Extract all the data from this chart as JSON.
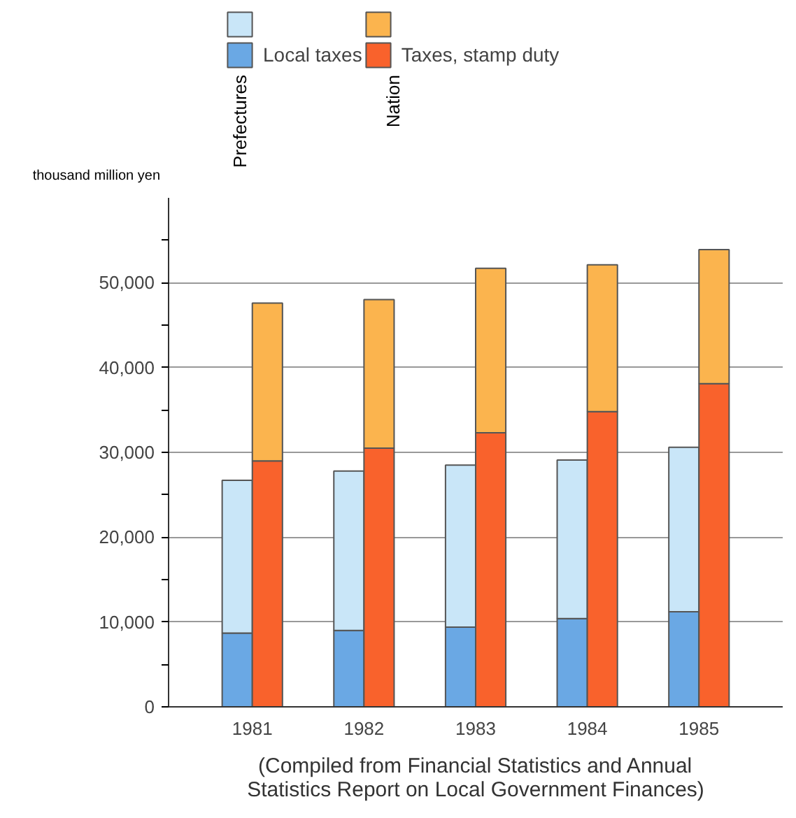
{
  "chart_data": {
    "type": "bar",
    "stacked": true,
    "x": [
      1980.865,
      1981.135,
      1981.865,
      1982.135,
      1982.865,
      1983.135,
      1983.865,
      1984.135,
      1984.865,
      1985.135
    ],
    "xlim": [
      1980.25,
      1985.75
    ],
    "xticks": [
      1981,
      1982,
      1983,
      1984,
      1985
    ],
    "ylabel": "thousand million yen",
    "series": [
      {
        "name": "Local taxes",
        "color": "#6aa8e4",
        "values": [
          8700,
          null,
          9000,
          null,
          9400,
          null,
          10400,
          null,
          11200,
          null
        ]
      },
      {
        "color": "#c9e6f8",
        "values": [
          18000,
          null,
          18800,
          null,
          19100,
          null,
          18700,
          null,
          19400,
          null
        ]
      },
      {
        "name": "Taxes, stamp duty",
        "color": "#f9622c",
        "values": [
          null,
          29000,
          null,
          30500,
          null,
          32300,
          null,
          34800,
          null,
          38100
        ]
      },
      {
        "color": "#fbb44e",
        "values": [
          null,
          18600,
          null,
          17500,
          null,
          19400,
          null,
          17300,
          null,
          15800
        ]
      }
    ],
    "ylim": [
      0,
      60000
    ],
    "yticks": [
      0,
      {
        "value": 5000,
        "label": null
      },
      {
        "value": 10000,
        "label": "10,000"
      },
      {
        "value": 15000,
        "label": null
      },
      {
        "value": 20000,
        "label": "20,000"
      },
      {
        "value": 25000,
        "label": null
      },
      {
        "value": 30000,
        "label": "30,000"
      },
      {
        "value": 35000,
        "label": null
      },
      {
        "value": 40000,
        "label": "40,000"
      },
      {
        "value": 45000,
        "label": null
      },
      {
        "value": 50000,
        "label": "50,000"
      },
      {
        "value": 55000,
        "label": null
      }
    ],
    "grid": "y",
    "legend": "top",
    "annotations": [
      "Prefectures",
      "Nation",
      "(Compiled from Financial Statistics and Annual Statistics Report on Local Government Finances)"
    ]
  }
}
